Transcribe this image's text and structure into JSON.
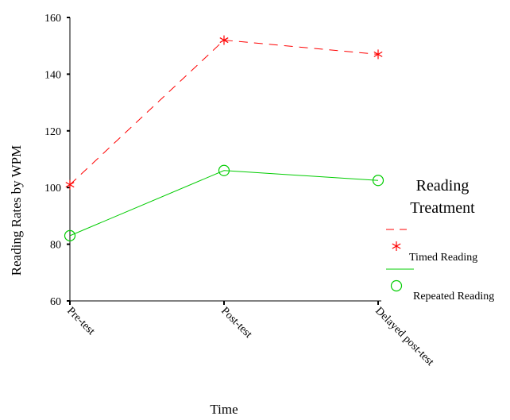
{
  "chart_data": {
    "type": "line",
    "title": "",
    "xlabel": "Time",
    "ylabel": "Reading Rates by WPM",
    "categories": [
      "Pre-test",
      "Post-test",
      "Delayed post-test"
    ],
    "yticks": [
      60,
      80,
      100,
      120,
      140,
      160
    ],
    "ylim": [
      60,
      160
    ],
    "grid": false,
    "legend": {
      "title_line1": "Reading",
      "title_line2": "Treatment",
      "placement": "right"
    },
    "series": [
      {
        "name": "Timed Reading",
        "values": [
          101,
          152,
          147
        ],
        "color": "#ff0000",
        "line": "dashed",
        "marker": "star"
      },
      {
        "name": "Repeated Reading",
        "values": [
          83,
          106,
          102.5
        ],
        "color": "#00cc00",
        "line": "solid",
        "marker": "circle"
      }
    ]
  }
}
